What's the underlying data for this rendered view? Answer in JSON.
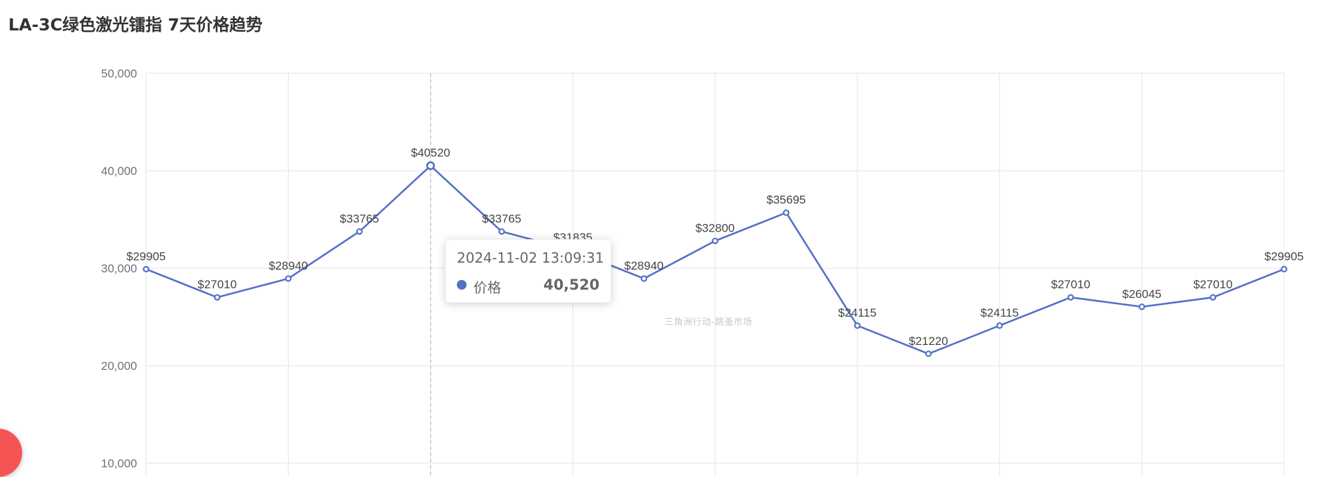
{
  "chart_data": {
    "type": "line",
    "title": "LA-3C绿色激光镭指 7天价格趋势",
    "series": [
      {
        "name": "价格",
        "values": [
          29905,
          27010,
          28940,
          33765,
          40520,
          33765,
          31835,
          28940,
          32800,
          35695,
          24115,
          21220,
          24115,
          27010,
          26045,
          27010,
          29905
        ]
      }
    ],
    "data_labels": [
      "$29905",
      "$27010",
      "$28940",
      "$33765",
      "$40520",
      "$33765",
      "$31835",
      "$28940",
      "$32800",
      "$35695",
      "$24115",
      "$21220",
      "$24115",
      "$27010",
      "$26045",
      "$27010",
      "$29905"
    ],
    "yticks": [
      "10,000",
      "20,000",
      "30,000",
      "40,000",
      "50,000"
    ],
    "ylim": [
      10000,
      50000
    ],
    "grid": true,
    "color": "#5470c6",
    "highlighted_index": 4
  },
  "watermark": "三角洲行动-跳蚤市场",
  "tooltip": {
    "time": "2024-11-02 13:09:31",
    "series_name": "价格",
    "value": "40,520"
  }
}
